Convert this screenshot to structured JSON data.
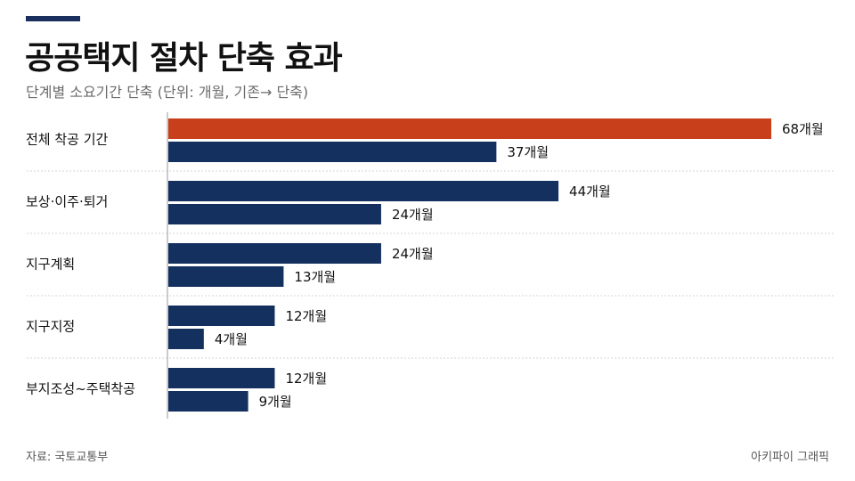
{
  "header": {
    "title": "공공택지 절차 단축 효과",
    "subtitle": "단계별 소요기간 단축 (단위: 개월, 기존→ 단축)"
  },
  "footer": {
    "source": "자료: 국토교통부",
    "credit": "아키파이 그래픽"
  },
  "colors": {
    "accent": "#1b2f5e",
    "before": "#c8401b",
    "after": "#14305f",
    "divider": "#d6d6d6",
    "axis": "#9a9a9a"
  },
  "chart_data": {
    "type": "bar",
    "orientation": "horizontal",
    "categories": [
      "전체 착공 기간",
      "보상·이주·퇴거",
      "지구계획",
      "지구지정",
      "부지조성~주택착공"
    ],
    "series": [
      {
        "values": [
          68,
          44,
          24,
          12,
          12
        ]
      },
      {
        "values": [
          37,
          24,
          13,
          4,
          9
        ]
      }
    ],
    "unit_suffix": "개월",
    "highlight": {
      "category_index": 0,
      "series_index": 0
    },
    "xlim": [
      0,
      68
    ],
    "grid": false
  }
}
